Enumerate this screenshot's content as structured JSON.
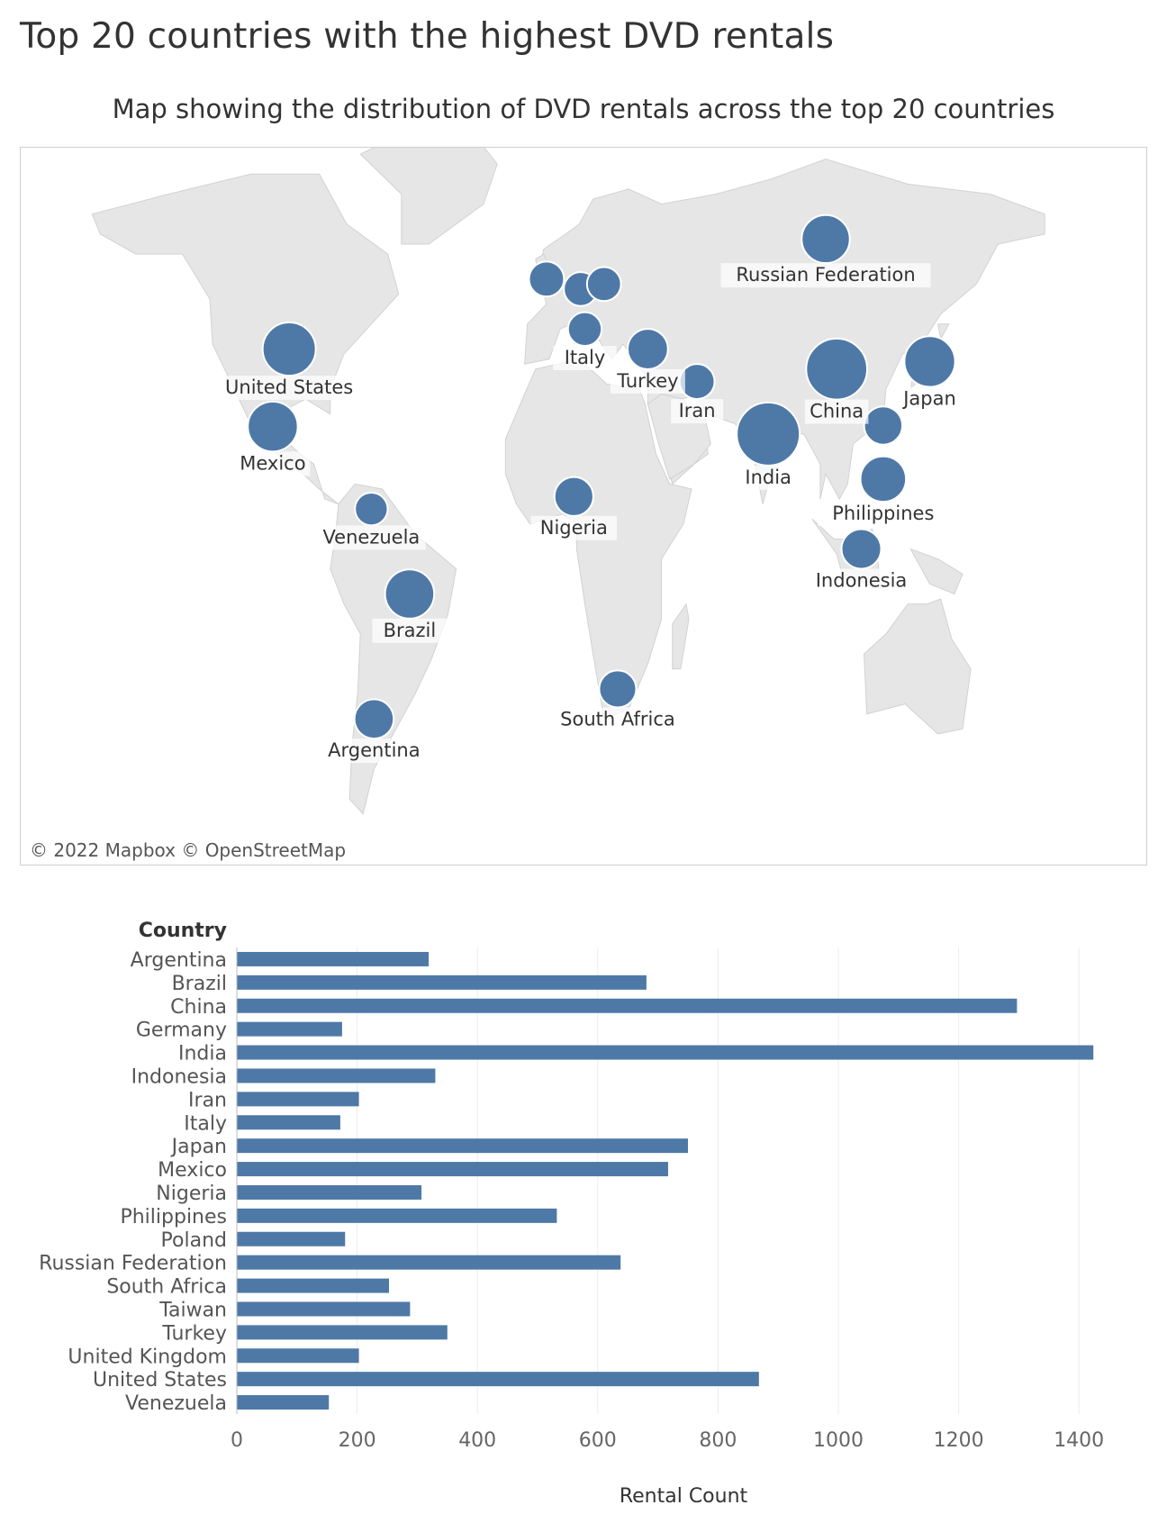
{
  "title": "Top 20 countries with the highest DVD rentals",
  "subtitle": "Map showing the distribution of DVD rentals across the top 20 countries",
  "map": {
    "attribution": "© 2022 Mapbox  © OpenStreetMap",
    "land_color": "#e6e6e6",
    "marker_color": "#4e79a7"
  },
  "chart_data": [
    {
      "type": "map",
      "points": [
        {
          "label": "Russian Federation",
          "lon": 100,
          "lat": 61,
          "value": 638
        },
        {
          "label": "United States",
          "lon": -96,
          "lat": 39,
          "value": 868
        },
        {
          "label": "Mexico",
          "lon": -102,
          "lat": 23.5,
          "value": 717
        },
        {
          "label": "Venezuela",
          "lon": -66,
          "lat": 7,
          "value": 153
        },
        {
          "label": "Brazil",
          "lon": -52,
          "lat": -10,
          "value": 681
        },
        {
          "label": "Argentina",
          "lon": -65,
          "lat": -35,
          "value": 319
        },
        {
          "label": "",
          "lon": -2,
          "lat": 53,
          "value": 203
        },
        {
          "label": "",
          "lon": 10.5,
          "lat": 51,
          "value": 175
        },
        {
          "label": "",
          "lon": 19,
          "lat": 52,
          "value": 180
        },
        {
          "label": "Italy",
          "lon": 12,
          "lat": 43,
          "value": 172
        },
        {
          "label": "Turkey",
          "lon": 35,
          "lat": 39,
          "value": 350
        },
        {
          "label": "Iran",
          "lon": 53,
          "lat": 32.5,
          "value": 203
        },
        {
          "label": "Nigeria",
          "lon": 8,
          "lat": 9.5,
          "value": 307
        },
        {
          "label": "South Africa",
          "lon": 24,
          "lat": -29,
          "value": 253
        },
        {
          "label": "India",
          "lon": 79,
          "lat": 22,
          "value": 1424
        },
        {
          "label": "China",
          "lon": 104,
          "lat": 35,
          "value": 1297
        },
        {
          "label": "Japan",
          "lon": 138,
          "lat": 36.5,
          "value": 750
        },
        {
          "label": "",
          "lon": 121,
          "lat": 23.7,
          "value": 288
        },
        {
          "label": "Philippines",
          "lon": 121,
          "lat": 13,
          "value": 532
        },
        {
          "label": "Indonesia",
          "lon": 113,
          "lat": -1,
          "value": 330
        }
      ]
    },
    {
      "type": "bar",
      "orientation": "horizontal",
      "y_header": "Country",
      "xlabel": "Rental Count",
      "xlim": [
        0,
        1500
      ],
      "xticks": [
        0,
        200,
        400,
        600,
        800,
        1000,
        1200,
        1400
      ],
      "grid": true,
      "categories": [
        "Argentina",
        "Brazil",
        "China",
        "Germany",
        "India",
        "Indonesia",
        "Iran",
        "Italy",
        "Japan",
        "Mexico",
        "Nigeria",
        "Philippines",
        "Poland",
        "Russian Federation",
        "South Africa",
        "Taiwan",
        "Turkey",
        "United Kingdom",
        "United States",
        "Venezuela"
      ],
      "values": [
        319,
        681,
        1297,
        175,
        1424,
        330,
        203,
        172,
        750,
        717,
        307,
        532,
        180,
        638,
        253,
        288,
        350,
        203,
        868,
        153
      ],
      "color": "#4e79a7"
    }
  ]
}
